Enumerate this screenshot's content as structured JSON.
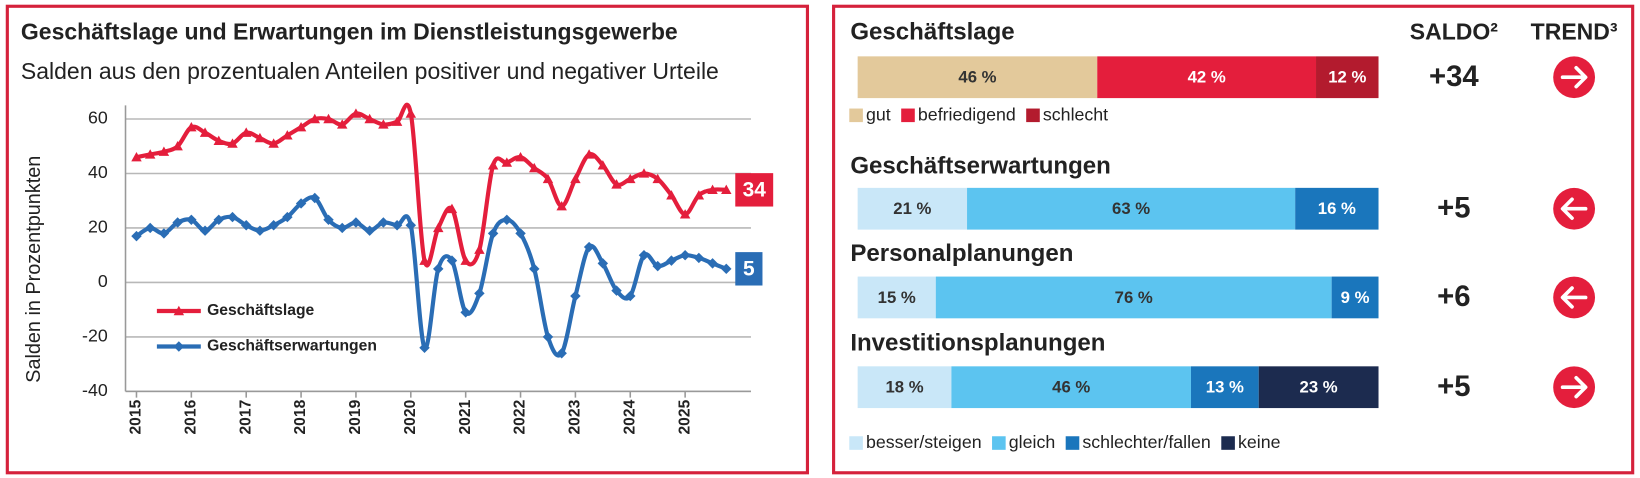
{
  "chart_data": [
    {
      "type": "line",
      "title": "Geschäftslage und Erwartungen im Dienstleistungsgewerbe",
      "subtitle": "Salden aus den prozentualen Anteilen positiver und negativer Urteile",
      "y_label": "Salden in Prozentpunkten",
      "x": [
        2015,
        2015.25,
        2015.5,
        2015.75,
        2016,
        2016.25,
        2016.5,
        2016.75,
        2017,
        2017.25,
        2017.5,
        2017.75,
        2018,
        2018.25,
        2018.5,
        2018.75,
        2019,
        2019.25,
        2019.5,
        2019.75,
        2020,
        2020.25,
        2020.5,
        2020.75,
        2021,
        2021.25,
        2021.5,
        2021.75,
        2022,
        2022.25,
        2022.5,
        2022.75,
        2023,
        2023.25,
        2023.5,
        2023.75,
        2024,
        2024.25,
        2024.5,
        2024.75,
        2025,
        2025.25,
        2025.5,
        2025.75
      ],
      "series": [
        {
          "name": "Geschäftslage",
          "color": "#e41e3c",
          "marker": "triangle",
          "values": [
            46,
            47,
            48,
            50,
            57,
            55,
            52,
            51,
            55,
            53,
            51,
            54,
            57,
            60,
            60,
            58,
            62,
            60,
            58,
            59,
            62,
            8,
            20,
            27,
            8,
            12,
            43,
            44,
            46,
            42,
            38,
            28,
            38,
            47,
            43,
            36,
            38,
            40,
            38,
            32,
            25,
            32,
            34,
            34
          ]
        },
        {
          "name": "Geschäftserwartungen",
          "color": "#2a6db5",
          "marker": "diamond",
          "values": [
            17,
            20,
            18,
            22,
            23,
            19,
            23,
            24,
            21,
            19,
            21,
            24,
            29,
            31,
            23,
            20,
            22,
            19,
            22,
            21,
            21,
            -24,
            5,
            8,
            -11,
            -4,
            18,
            23,
            18,
            5,
            -20,
            -26,
            -5,
            13,
            7,
            -3,
            -5,
            10,
            6,
            8,
            10,
            9,
            7,
            5
          ]
        }
      ],
      "xlim": [
        2014.8,
        2026.2
      ],
      "xticks": [
        2015,
        2016,
        2017,
        2018,
        2019,
        2020,
        2021,
        2022,
        2023,
        2024,
        2025
      ],
      "ylim": [
        -40,
        65
      ],
      "yticks": [
        -40,
        -20,
        0,
        20,
        40,
        60
      ],
      "grid": true
    },
    {
      "type": "stacked_bar",
      "orientation": "horizontal",
      "categories": [
        "Geschäftslage"
      ],
      "series": [
        {
          "name": "gut",
          "color": "#e3c99b",
          "values": [
            46
          ],
          "value_labels": [
            "46 %"
          ]
        },
        {
          "name": "befriedigend",
          "color": "#e41e3c",
          "values": [
            42
          ],
          "value_labels": [
            "42 %"
          ]
        },
        {
          "name": "schlecht",
          "color": "#b31b2e",
          "values": [
            12
          ],
          "value_labels": [
            "12 %"
          ]
        }
      ],
      "xlim": [
        0,
        100
      ],
      "saldo_title": "SALDO²",
      "trend_title": "TREND³",
      "saldo": {
        "values": [
          34
        ],
        "value_labels": [
          "+34"
        ]
      },
      "trend": [
        "right"
      ]
    },
    {
      "type": "stacked_bar",
      "orientation": "horizontal",
      "categories": [
        "Geschäftserwartungen",
        "Personalplanungen",
        "Investitionsplanungen"
      ],
      "series": [
        {
          "name": "besser/steigen",
          "color": "#c9e7f8",
          "values": [
            21,
            15,
            18
          ],
          "value_labels": [
            "21 %",
            "15 %",
            "18 %"
          ]
        },
        {
          "name": "gleich",
          "color": "#5cc4f0",
          "values": [
            63,
            76,
            46
          ],
          "value_labels": [
            "63 %",
            "76 %",
            "46 %"
          ]
        },
        {
          "name": "schlechter/fallen",
          "color": "#1a76bc",
          "values": [
            16,
            9,
            13
          ],
          "value_labels": [
            "16 %",
            "9 %",
            "13 %"
          ]
        },
        {
          "name": "keine",
          "color": "#1c2b4f",
          "values": [
            null,
            null,
            23
          ],
          "value_labels": [
            null,
            null,
            "23 %"
          ]
        }
      ],
      "xlim": [
        0,
        100
      ],
      "saldo": {
        "values": [
          5,
          6,
          5
        ],
        "value_labels": [
          "+5",
          "+6",
          "+5"
        ]
      },
      "trend": [
        "left",
        "left",
        "right"
      ]
    }
  ]
}
